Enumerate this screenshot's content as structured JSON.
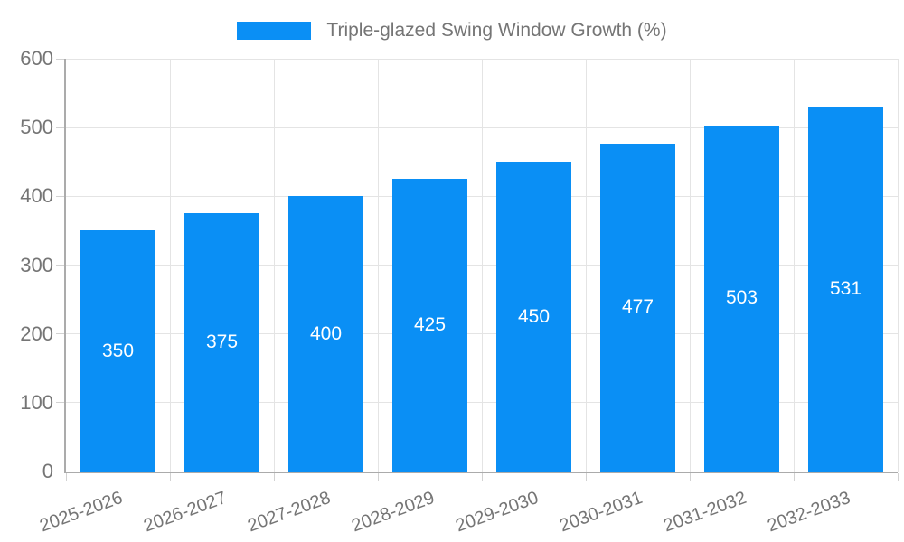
{
  "legend": {
    "label": "Triple-glazed Swing Window Growth (%)"
  },
  "colors": {
    "bar": "#0a8ff5",
    "bar_value_text": "#ffffff",
    "grid_line": "#e4e4e4",
    "axis_line": "#ababab",
    "tick_line": "#d2d2d2",
    "axis_text": "#757575"
  },
  "chart_data": {
    "type": "bar",
    "categories": [
      "2025-2026",
      "2026-2027",
      "2027-2028",
      "2028-2029",
      "2029-2030",
      "2030-2031",
      "2031-2032",
      "2032-2033"
    ],
    "values": [
      350,
      375,
      400,
      425,
      450,
      477,
      503,
      531
    ],
    "series_name": "Triple-glazed Swing Window Growth (%)",
    "title": "",
    "xlabel": "",
    "ylabel": "",
    "ylim": [
      0,
      600
    ],
    "yticks": [
      0,
      100,
      200,
      300,
      400,
      500,
      600
    ],
    "grid": "both",
    "legend_position": "top-center",
    "bar_label_position": "inside-middle",
    "x_label_rotation_deg": -20
  }
}
